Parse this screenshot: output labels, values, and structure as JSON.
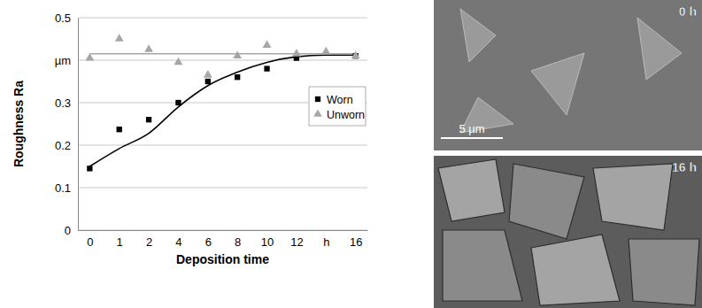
{
  "chart_data": {
    "type": "scatter",
    "xlabel": "Deposition time",
    "ylabel": "Roughness Ra",
    "categories": [
      "0",
      "1",
      "2",
      "4",
      "6",
      "8",
      "10",
      "12",
      "h",
      "16"
    ],
    "series": [
      {
        "name": "Worn",
        "color": "#000000",
        "marker": "square",
        "values": [
          0.145,
          0.237,
          0.26,
          0.3,
          0.35,
          0.36,
          0.38,
          0.405,
          null,
          0.41
        ],
        "trend": [
          0.15,
          0.192,
          0.228,
          0.29,
          0.34,
          0.372,
          0.395,
          0.408,
          0.412,
          0.412
        ]
      },
      {
        "name": "Unworn",
        "color": "#a6a6a6",
        "marker": "triangle",
        "values": [
          0.405,
          0.45,
          0.425,
          0.395,
          0.365,
          0.41,
          0.435,
          0.415,
          0.42,
          0.41
        ],
        "trend": [
          0.415,
          0.415,
          0.415,
          0.415,
          0.415,
          0.415,
          0.415,
          0.415,
          0.415,
          0.415
        ]
      }
    ],
    "ylim": [
      0,
      0.5
    ],
    "yticks": [
      0,
      0.1,
      0.2,
      0.3,
      {
        "value": 0.4,
        "label": "µm"
      },
      0.5
    ],
    "grid": true,
    "legend": "right"
  },
  "images": [
    {
      "label": "0 h",
      "scale_bar": "5 µm"
    },
    {
      "label": "16 h"
    }
  ]
}
